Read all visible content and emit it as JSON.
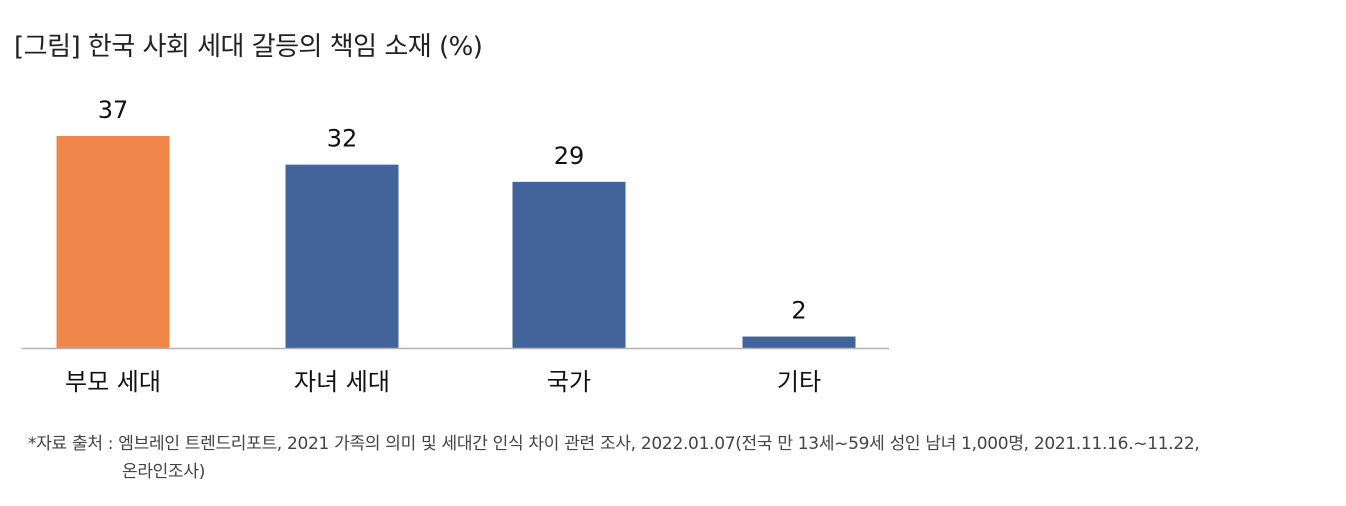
{
  "title": "[그림] 한국 사회 세대 갈등의 책임 소재 (%)",
  "source_line1": "*자료 출처 : 엠브레인 트렌드리포트, 2021 가족의 의미 및 세대간 인식 차이 관련 조사, 2022.01.07(전국 만 13세~59세 성인 남녀 1,000명, 2021.11.16.~11.22,",
  "source_line2": "온라인조사)",
  "colors": {
    "highlight": "#f0874a",
    "default": "#43649b",
    "axis": "#b3b3b3"
  },
  "chart_data": {
    "type": "bar",
    "title": "[그림] 한국 사회 세대 갈등의 책임 소재 (%)",
    "categories": [
      "부모 세대",
      "자녀 세대",
      "국가",
      "기타"
    ],
    "values": [
      37,
      32,
      29,
      2
    ],
    "data_labels": [
      "37",
      "32",
      "29",
      "2"
    ],
    "highlight_index": 0,
    "ylim": [
      0,
      37
    ],
    "grid": false,
    "legend": "none"
  }
}
